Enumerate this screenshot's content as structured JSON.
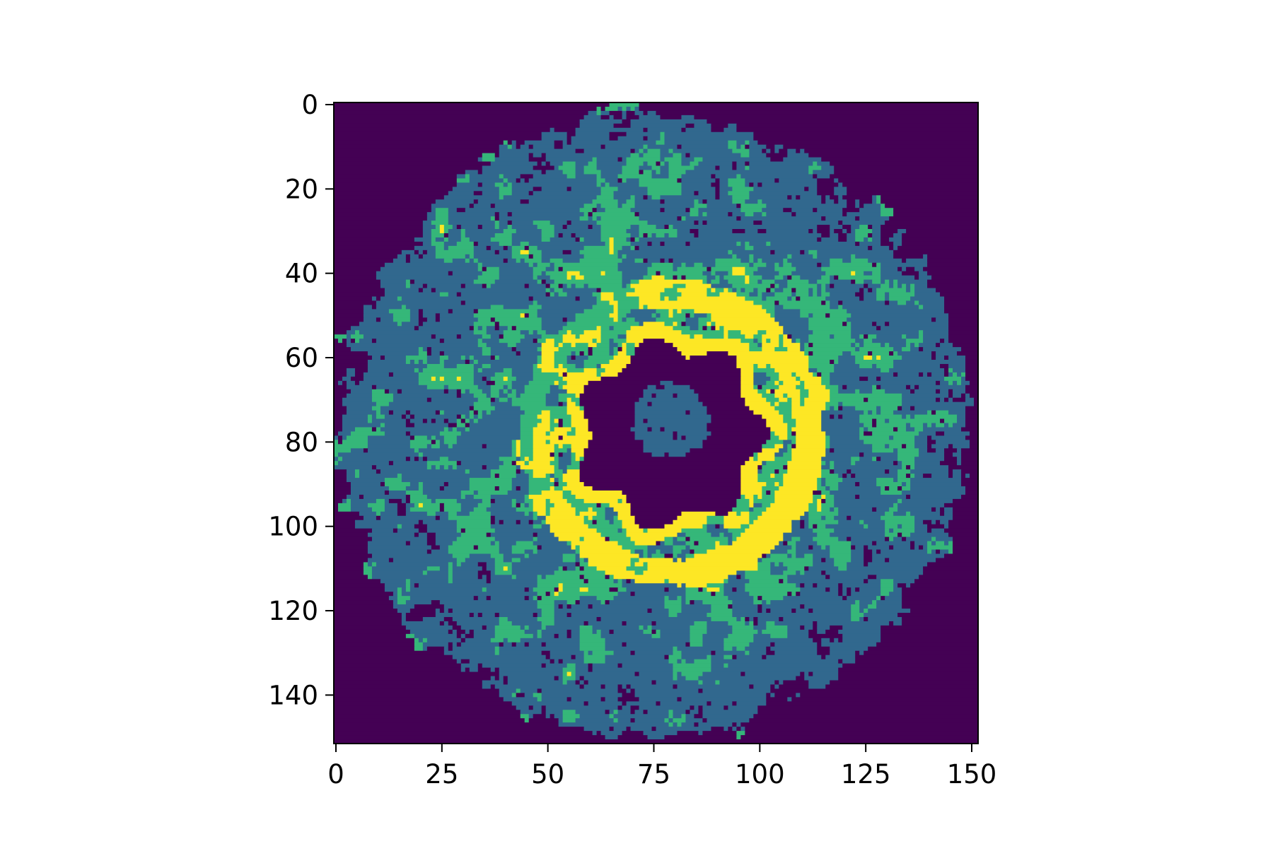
{
  "chart_data": {
    "type": "heatmap",
    "title": "",
    "xlabel": "",
    "ylabel": "",
    "image_shape": [
      152,
      152
    ],
    "xlim": [
      -0.5,
      151.5
    ],
    "ylim": [
      151.5,
      -0.5
    ],
    "x_ticks": [
      0,
      25,
      50,
      75,
      100,
      125,
      150
    ],
    "x_tick_labels": [
      "0",
      "25",
      "50",
      "75",
      "100",
      "125",
      "150"
    ],
    "y_ticks": [
      0,
      20,
      40,
      60,
      80,
      100,
      120,
      140
    ],
    "y_tick_labels": [
      "0",
      "20",
      "40",
      "60",
      "80",
      "100",
      "120",
      "140"
    ],
    "colormap": "viridis",
    "levels": [
      0,
      1,
      2,
      3
    ],
    "level_colors": [
      "#440154",
      "#31688e",
      "#35b779",
      "#fde725"
    ],
    "grid": false,
    "legend": "none",
    "description_values": {
      "outer_disk_center": [
        75,
        76
      ],
      "outer_disk_radius": 74,
      "inner_hole_center": [
        79,
        78
      ],
      "inner_hole_radius": 21,
      "center_blob_center": [
        79,
        75
      ],
      "center_blob_radius": 9,
      "bright_ring_radius": 33
    }
  }
}
